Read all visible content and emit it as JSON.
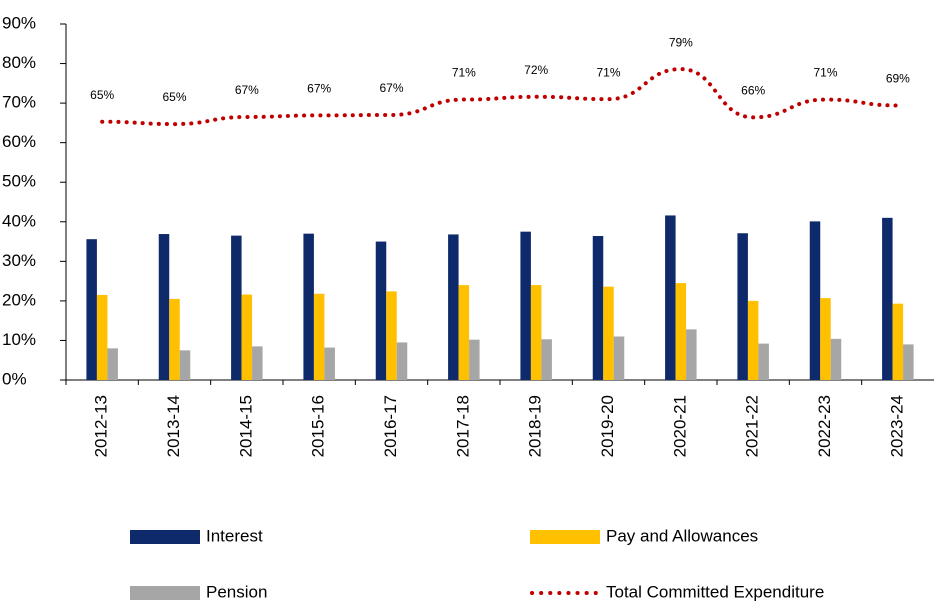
{
  "chart_data": {
    "type": "bar",
    "categories": [
      "2012-13",
      "2013-14",
      "2014-15",
      "2015-16",
      "2016-17",
      "2017-18",
      "2018-19",
      "2019-20",
      "2020-21",
      "2021-22",
      "2022-23",
      "2023-24"
    ],
    "series": [
      {
        "name": "Interest",
        "color": "#0f2a6b",
        "values": [
          35.6,
          36.9,
          36.5,
          37.0,
          35.0,
          36.8,
          37.5,
          36.4,
          41.6,
          37.1,
          40.1,
          41.0
        ]
      },
      {
        "name": "Pay and Allowances",
        "color": "#ffc000",
        "values": [
          21.5,
          20.5,
          21.6,
          21.8,
          22.4,
          24.0,
          24.0,
          23.6,
          24.5,
          20.0,
          20.7,
          19.3
        ]
      },
      {
        "name": "Pension",
        "color": "#a6a6a6",
        "values": [
          8.0,
          7.5,
          8.5,
          8.2,
          9.5,
          10.2,
          10.3,
          11.0,
          12.8,
          9.2,
          10.4,
          9.0
        ]
      },
      {
        "name": "Total Committed Expenditure",
        "type": "line",
        "color": "#c00000",
        "values": [
          65.3,
          64.7,
          66.5,
          66.9,
          67.0,
          70.9,
          71.6,
          71.0,
          78.6,
          66.4,
          70.9,
          69.4
        ],
        "value_labels": [
          "65%",
          "65%",
          "67%",
          "67%",
          "67%",
          "71%",
          "72%",
          "71%",
          "79%",
          "66%",
          "71%",
          "69%"
        ]
      }
    ],
    "ylim": [
      0,
      90
    ],
    "yticks": [
      {
        "value": 0,
        "label": "0%"
      },
      {
        "value": 10,
        "label": "10%"
      },
      {
        "value": 20,
        "label": "20%"
      },
      {
        "value": 30,
        "label": "30%"
      },
      {
        "value": 40,
        "label": "40%"
      },
      {
        "value": 50,
        "label": "50%"
      },
      {
        "value": 60,
        "label": "60%"
      },
      {
        "value": 70,
        "label": "70%"
      },
      {
        "value": 80,
        "label": "80%"
      },
      {
        "value": 90,
        "label": "90%"
      }
    ],
    "grid": false,
    "legend": "bottom"
  }
}
